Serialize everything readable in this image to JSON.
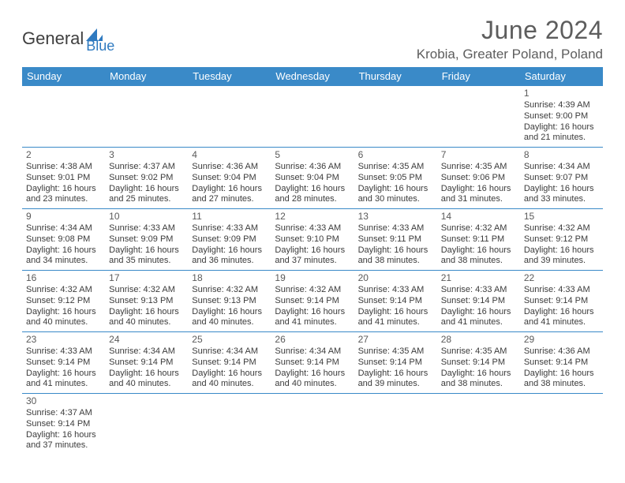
{
  "logo": {
    "part1": "General",
    "part2": "Blue"
  },
  "title": "June 2024",
  "location": "Krobia, Greater Poland, Poland",
  "header_bg": "#3a8ac8",
  "day_headers": [
    "Sunday",
    "Monday",
    "Tuesday",
    "Wednesday",
    "Thursday",
    "Friday",
    "Saturday"
  ],
  "weeks": [
    [
      null,
      null,
      null,
      null,
      null,
      null,
      {
        "n": "1",
        "sr": "Sunrise: 4:39 AM",
        "ss": "Sunset: 9:00 PM",
        "d1": "Daylight: 16 hours",
        "d2": "and 21 minutes."
      }
    ],
    [
      {
        "n": "2",
        "sr": "Sunrise: 4:38 AM",
        "ss": "Sunset: 9:01 PM",
        "d1": "Daylight: 16 hours",
        "d2": "and 23 minutes."
      },
      {
        "n": "3",
        "sr": "Sunrise: 4:37 AM",
        "ss": "Sunset: 9:02 PM",
        "d1": "Daylight: 16 hours",
        "d2": "and 25 minutes."
      },
      {
        "n": "4",
        "sr": "Sunrise: 4:36 AM",
        "ss": "Sunset: 9:04 PM",
        "d1": "Daylight: 16 hours",
        "d2": "and 27 minutes."
      },
      {
        "n": "5",
        "sr": "Sunrise: 4:36 AM",
        "ss": "Sunset: 9:04 PM",
        "d1": "Daylight: 16 hours",
        "d2": "and 28 minutes."
      },
      {
        "n": "6",
        "sr": "Sunrise: 4:35 AM",
        "ss": "Sunset: 9:05 PM",
        "d1": "Daylight: 16 hours",
        "d2": "and 30 minutes."
      },
      {
        "n": "7",
        "sr": "Sunrise: 4:35 AM",
        "ss": "Sunset: 9:06 PM",
        "d1": "Daylight: 16 hours",
        "d2": "and 31 minutes."
      },
      {
        "n": "8",
        "sr": "Sunrise: 4:34 AM",
        "ss": "Sunset: 9:07 PM",
        "d1": "Daylight: 16 hours",
        "d2": "and 33 minutes."
      }
    ],
    [
      {
        "n": "9",
        "sr": "Sunrise: 4:34 AM",
        "ss": "Sunset: 9:08 PM",
        "d1": "Daylight: 16 hours",
        "d2": "and 34 minutes."
      },
      {
        "n": "10",
        "sr": "Sunrise: 4:33 AM",
        "ss": "Sunset: 9:09 PM",
        "d1": "Daylight: 16 hours",
        "d2": "and 35 minutes."
      },
      {
        "n": "11",
        "sr": "Sunrise: 4:33 AM",
        "ss": "Sunset: 9:09 PM",
        "d1": "Daylight: 16 hours",
        "d2": "and 36 minutes."
      },
      {
        "n": "12",
        "sr": "Sunrise: 4:33 AM",
        "ss": "Sunset: 9:10 PM",
        "d1": "Daylight: 16 hours",
        "d2": "and 37 minutes."
      },
      {
        "n": "13",
        "sr": "Sunrise: 4:33 AM",
        "ss": "Sunset: 9:11 PM",
        "d1": "Daylight: 16 hours",
        "d2": "and 38 minutes."
      },
      {
        "n": "14",
        "sr": "Sunrise: 4:32 AM",
        "ss": "Sunset: 9:11 PM",
        "d1": "Daylight: 16 hours",
        "d2": "and 38 minutes."
      },
      {
        "n": "15",
        "sr": "Sunrise: 4:32 AM",
        "ss": "Sunset: 9:12 PM",
        "d1": "Daylight: 16 hours",
        "d2": "and 39 minutes."
      }
    ],
    [
      {
        "n": "16",
        "sr": "Sunrise: 4:32 AM",
        "ss": "Sunset: 9:12 PM",
        "d1": "Daylight: 16 hours",
        "d2": "and 40 minutes."
      },
      {
        "n": "17",
        "sr": "Sunrise: 4:32 AM",
        "ss": "Sunset: 9:13 PM",
        "d1": "Daylight: 16 hours",
        "d2": "and 40 minutes."
      },
      {
        "n": "18",
        "sr": "Sunrise: 4:32 AM",
        "ss": "Sunset: 9:13 PM",
        "d1": "Daylight: 16 hours",
        "d2": "and 40 minutes."
      },
      {
        "n": "19",
        "sr": "Sunrise: 4:32 AM",
        "ss": "Sunset: 9:14 PM",
        "d1": "Daylight: 16 hours",
        "d2": "and 41 minutes."
      },
      {
        "n": "20",
        "sr": "Sunrise: 4:33 AM",
        "ss": "Sunset: 9:14 PM",
        "d1": "Daylight: 16 hours",
        "d2": "and 41 minutes."
      },
      {
        "n": "21",
        "sr": "Sunrise: 4:33 AM",
        "ss": "Sunset: 9:14 PM",
        "d1": "Daylight: 16 hours",
        "d2": "and 41 minutes."
      },
      {
        "n": "22",
        "sr": "Sunrise: 4:33 AM",
        "ss": "Sunset: 9:14 PM",
        "d1": "Daylight: 16 hours",
        "d2": "and 41 minutes."
      }
    ],
    [
      {
        "n": "23",
        "sr": "Sunrise: 4:33 AM",
        "ss": "Sunset: 9:14 PM",
        "d1": "Daylight: 16 hours",
        "d2": "and 41 minutes."
      },
      {
        "n": "24",
        "sr": "Sunrise: 4:34 AM",
        "ss": "Sunset: 9:14 PM",
        "d1": "Daylight: 16 hours",
        "d2": "and 40 minutes."
      },
      {
        "n": "25",
        "sr": "Sunrise: 4:34 AM",
        "ss": "Sunset: 9:14 PM",
        "d1": "Daylight: 16 hours",
        "d2": "and 40 minutes."
      },
      {
        "n": "26",
        "sr": "Sunrise: 4:34 AM",
        "ss": "Sunset: 9:14 PM",
        "d1": "Daylight: 16 hours",
        "d2": "and 40 minutes."
      },
      {
        "n": "27",
        "sr": "Sunrise: 4:35 AM",
        "ss": "Sunset: 9:14 PM",
        "d1": "Daylight: 16 hours",
        "d2": "and 39 minutes."
      },
      {
        "n": "28",
        "sr": "Sunrise: 4:35 AM",
        "ss": "Sunset: 9:14 PM",
        "d1": "Daylight: 16 hours",
        "d2": "and 38 minutes."
      },
      {
        "n": "29",
        "sr": "Sunrise: 4:36 AM",
        "ss": "Sunset: 9:14 PM",
        "d1": "Daylight: 16 hours",
        "d2": "and 38 minutes."
      }
    ],
    [
      {
        "n": "30",
        "sr": "Sunrise: 4:37 AM",
        "ss": "Sunset: 9:14 PM",
        "d1": "Daylight: 16 hours",
        "d2": "and 37 minutes."
      },
      null,
      null,
      null,
      null,
      null,
      null
    ]
  ]
}
